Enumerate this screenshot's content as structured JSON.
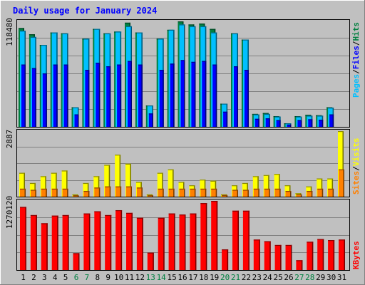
{
  "chart_data": [
    {
      "type": "bar",
      "panel": "hits-files-pages",
      "title": "Daily usage for January 2024",
      "y_max_label": "118480",
      "ylim": [
        0,
        118480
      ],
      "categories": [
        "1",
        "2",
        "3",
        "4",
        "5",
        "6",
        "7",
        "8",
        "9",
        "10",
        "11",
        "12",
        "13",
        "14",
        "15",
        "16",
        "17",
        "18",
        "19",
        "20",
        "21",
        "22",
        "23",
        "24",
        "25",
        "26",
        "27",
        "28",
        "29",
        "30",
        "31"
      ],
      "weekend_days": [
        "6",
        "7",
        "13",
        "14",
        "20",
        "21",
        "27",
        "28"
      ],
      "series": [
        {
          "name": "Hits",
          "color": "#008040",
          "values": [
            111000,
            104000,
            92000,
            106000,
            105000,
            22000,
            99000,
            110000,
            105000,
            107000,
            117000,
            106000,
            24000,
            99000,
            109000,
            118480,
            115000,
            116000,
            110000,
            26000,
            105000,
            98000,
            14500,
            15500,
            12000,
            4000,
            12000,
            13500,
            13000,
            22000,
            0
          ]
        },
        {
          "name": "Files",
          "color": "#00c0ff",
          "values": [
            108000,
            101000,
            92000,
            106000,
            105000,
            22000,
            99000,
            110000,
            105000,
            107000,
            113000,
            106000,
            24000,
            99000,
            109000,
            115000,
            113000,
            113000,
            106000,
            26000,
            105000,
            98000,
            14000,
            14500,
            11500,
            4000,
            11500,
            12500,
            12500,
            21500,
            0
          ]
        },
        {
          "name": "Pages",
          "color": "#0000ff",
          "values": [
            70000,
            66000,
            60000,
            70000,
            70000,
            14000,
            64000,
            72000,
            68000,
            70000,
            74000,
            70000,
            15000,
            64000,
            71000,
            75000,
            73000,
            74000,
            70000,
            17000,
            68000,
            64000,
            9000,
            9500,
            7500,
            2500,
            7500,
            8500,
            8000,
            14000,
            0
          ]
        }
      ],
      "legend_labels": [
        "Pages",
        "/",
        "Files",
        "/",
        "Hits"
      ]
    },
    {
      "type": "bar",
      "panel": "visits-sites",
      "y_max_label": "2887",
      "ylim": [
        0,
        2887
      ],
      "series": [
        {
          "name": "Visits",
          "color": "#ffff00",
          "values": [
            1050,
            600,
            900,
            1050,
            1150,
            100,
            600,
            900,
            1400,
            1850,
            1450,
            650,
            100,
            1050,
            1200,
            650,
            500,
            750,
            700,
            100,
            500,
            600,
            900,
            950,
            1000,
            500,
            150,
            450,
            800,
            800,
            2887
          ]
        },
        {
          "name": "Sites",
          "color": "#ff8000",
          "values": [
            350,
            300,
            350,
            350,
            350,
            60,
            250,
            400,
            450,
            450,
            450,
            400,
            60,
            350,
            350,
            350,
            350,
            350,
            350,
            70,
            300,
            300,
            350,
            350,
            350,
            250,
            100,
            250,
            350,
            350,
            1200
          ]
        }
      ],
      "legend_labels": [
        "Sites",
        "/",
        "Visits"
      ]
    },
    {
      "type": "bar",
      "panel": "kbytes",
      "y_max_label": "1270120",
      "ylim": [
        0,
        1270120
      ],
      "series": [
        {
          "name": "KBytes",
          "color": "#ff0000",
          "values": [
            1160000,
            1010000,
            860000,
            1000000,
            1010000,
            310000,
            1040000,
            1080000,
            1010000,
            1100000,
            1050000,
            960000,
            320000,
            960000,
            1040000,
            1020000,
            1040000,
            1230000,
            1270120,
            380000,
            1090000,
            1090000,
            560000,
            530000,
            460000,
            460000,
            180000,
            520000,
            570000,
            550000,
            560000
          ]
        }
      ],
      "legend_labels": [
        "KBytes"
      ]
    }
  ],
  "colors": {
    "background": "#c0c0c0",
    "title": "#0000ff",
    "axis_labels": "#000000",
    "weekend_labels": "#008040",
    "grid": "#808080"
  }
}
